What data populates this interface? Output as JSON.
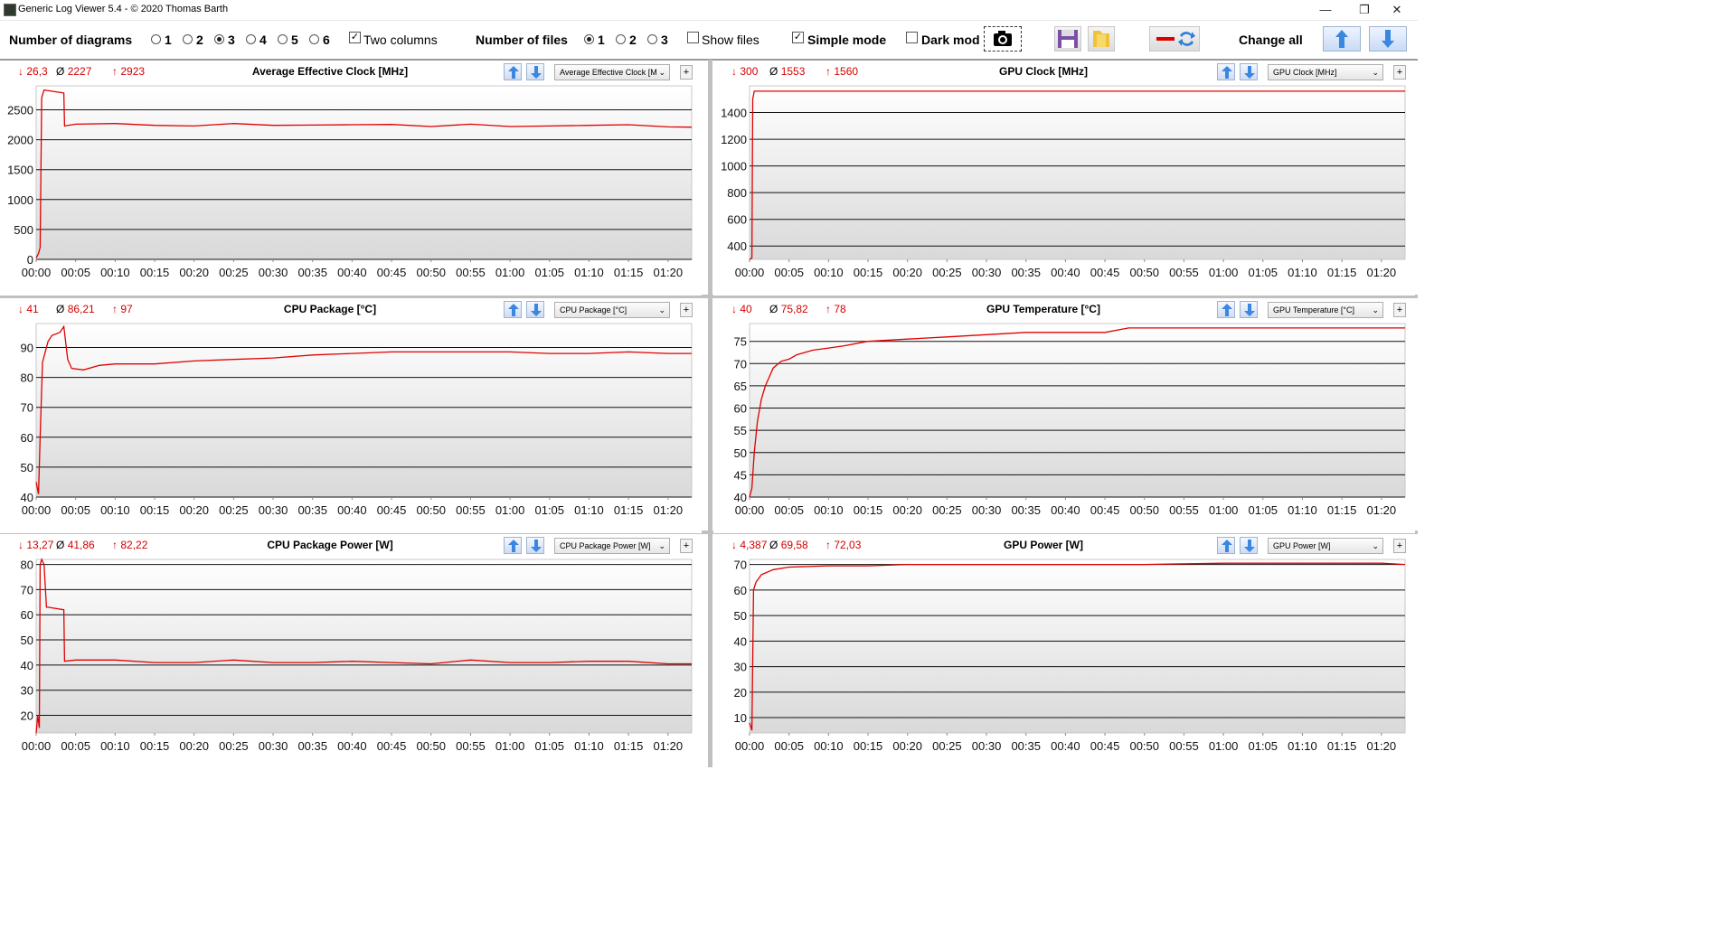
{
  "window": {
    "title": "Generic Log Viewer 5.4 - © 2020 Thomas Barth",
    "minimize": "—",
    "restore": "❐",
    "close": "✕"
  },
  "toolbar": {
    "num_diagrams_label": "Number of diagrams",
    "diagram_options": [
      "1",
      "2",
      "3",
      "4",
      "5",
      "6"
    ],
    "diagram_selected": "3",
    "two_columns_label": "Two columns",
    "two_columns_checked": true,
    "num_files_label": "Number of files",
    "file_options": [
      "1",
      "2",
      "3"
    ],
    "file_selected": "1",
    "show_files_label": "Show files",
    "show_files_checked": false,
    "simple_mode_label": "Simple mode",
    "simple_mode_checked": true,
    "dark_mode_label": "Dark mod",
    "dark_mode_checked": false,
    "change_all_label": "Change all"
  },
  "time_ticks": [
    "00:00",
    "00:05",
    "00:10",
    "00:15",
    "00:20",
    "00:25",
    "00:30",
    "00:35",
    "00:40",
    "00:45",
    "00:50",
    "00:55",
    "01:00",
    "01:05",
    "01:10",
    "01:15",
    "01:20"
  ],
  "panels": [
    {
      "id": "avg-clock",
      "title": "Average Effective Clock [MHz]",
      "min": "26,3",
      "avg": "2227",
      "max": "2923",
      "dropdown": "Average Effective Clock [M",
      "chart_data": {
        "type": "line",
        "title": "Average Effective Clock [MHz]",
        "y_ticks": [
          0,
          500,
          1000,
          1500,
          2000,
          2500
        ],
        "ylim": [
          0,
          2900
        ],
        "x_unit": "minutes",
        "xlim": [
          0,
          83
        ],
        "x": [
          0,
          0.3,
          0.5,
          0.7,
          1,
          3.5,
          3.6,
          5,
          10,
          15,
          20,
          25,
          30,
          35,
          40,
          45,
          50,
          55,
          60,
          65,
          70,
          75,
          80,
          83
        ],
        "y": [
          26,
          100,
          200,
          2700,
          2830,
          2780,
          2230,
          2260,
          2270,
          2240,
          2230,
          2270,
          2240,
          2245,
          2250,
          2255,
          2220,
          2260,
          2220,
          2230,
          2240,
          2250,
          2215,
          2210
        ]
      }
    },
    {
      "id": "gpu-clock",
      "title": "GPU Clock [MHz]",
      "min": "300",
      "avg": "1553",
      "max": "1560",
      "dropdown": "GPU Clock [MHz]",
      "chart_data": {
        "type": "line",
        "title": "GPU Clock [MHz]",
        "y_ticks": [
          400,
          600,
          800,
          1000,
          1200,
          1400
        ],
        "ylim": [
          300,
          1600
        ],
        "x_unit": "minutes",
        "xlim": [
          0,
          83
        ],
        "x": [
          0,
          0.3,
          0.4,
          0.6,
          1,
          83
        ],
        "y": [
          300,
          310,
          1500,
          1560,
          1560,
          1560
        ]
      }
    },
    {
      "id": "cpu-package",
      "title": "CPU Package [°C]",
      "min": "41",
      "avg": "86,21",
      "max": "97",
      "dropdown": "CPU Package [°C]",
      "chart_data": {
        "type": "line",
        "title": "CPU Package [°C]",
        "y_ticks": [
          40,
          50,
          60,
          70,
          80,
          90
        ],
        "ylim": [
          40,
          98
        ],
        "x_unit": "minutes",
        "xlim": [
          0,
          83
        ],
        "x": [
          0,
          0.3,
          0.5,
          0.8,
          1.5,
          2,
          3,
          3.5,
          4,
          4.5,
          6,
          8,
          10,
          15,
          20,
          25,
          30,
          35,
          40,
          45,
          50,
          55,
          60,
          65,
          70,
          75,
          80,
          83
        ],
        "y": [
          45,
          41,
          60,
          85,
          92,
          94,
          95,
          97,
          86,
          83,
          82.5,
          84,
          84.5,
          84.5,
          85.5,
          86,
          86.5,
          87.5,
          88,
          88.5,
          88.5,
          88.5,
          88.5,
          88,
          88,
          88.5,
          88,
          88
        ]
      }
    },
    {
      "id": "gpu-temp",
      "title": "GPU Temperature [°C]",
      "min": "40",
      "avg": "75,82",
      "max": "78",
      "dropdown": "GPU Temperature [°C]",
      "chart_data": {
        "type": "line",
        "title": "GPU Temperature [°C]",
        "y_ticks": [
          40,
          45,
          50,
          55,
          60,
          65,
          70,
          75
        ],
        "ylim": [
          40,
          79
        ],
        "x_unit": "minutes",
        "xlim": [
          0,
          83
        ],
        "x": [
          0,
          0.3,
          0.6,
          1,
          1.5,
          2,
          2.5,
          3,
          4,
          5,
          6,
          8,
          10,
          12,
          15,
          20,
          25,
          30,
          35,
          40,
          45,
          48,
          50,
          60,
          70,
          80,
          83
        ],
        "y": [
          40,
          42,
          50,
          57,
          62,
          65,
          67,
          69,
          70.5,
          71,
          72,
          73,
          73.5,
          74,
          75,
          75.5,
          76,
          76.5,
          77,
          77,
          77,
          78,
          78,
          78,
          78,
          78,
          78
        ]
      }
    },
    {
      "id": "cpu-power",
      "title": "CPU Package Power [W]",
      "min": "13,27",
      "avg": "41,86",
      "max": "82,22",
      "dropdown": "CPU Package Power [W]",
      "chart_data": {
        "type": "line",
        "title": "CPU Package Power [W]",
        "y_ticks": [
          20,
          30,
          40,
          50,
          60,
          70,
          80
        ],
        "ylim": [
          13,
          82
        ],
        "x_unit": "minutes",
        "xlim": [
          0,
          83
        ],
        "x": [
          0,
          0.2,
          0.4,
          0.5,
          0.7,
          1,
          1.3,
          1.5,
          3.5,
          3.6,
          5,
          10,
          15,
          20,
          25,
          30,
          35,
          40,
          45,
          50,
          55,
          60,
          65,
          70,
          75,
          80,
          83
        ],
        "y": [
          13,
          20,
          15,
          80,
          82,
          80,
          63,
          63,
          62,
          41.5,
          42,
          42,
          41,
          41,
          42,
          41,
          41,
          41.5,
          41,
          40.5,
          42,
          41,
          41,
          41.5,
          41.5,
          40.5,
          40.5
        ]
      }
    },
    {
      "id": "gpu-power",
      "title": "GPU Power [W]",
      "min": "4,387",
      "avg": "69,58",
      "max": "72,03",
      "dropdown": "GPU Power [W]",
      "chart_data": {
        "type": "line",
        "title": "GPU Power [W]",
        "y_ticks": [
          10,
          20,
          30,
          40,
          50,
          60,
          70
        ],
        "ylim": [
          4,
          72
        ],
        "x_unit": "minutes",
        "xlim": [
          0,
          83
        ],
        "x": [
          0,
          0.3,
          0.5,
          0.8,
          1.5,
          3,
          5,
          10,
          15,
          20,
          30,
          40,
          50,
          60,
          70,
          80,
          83
        ],
        "y": [
          8,
          5,
          60,
          63,
          66,
          68,
          69,
          69.5,
          69.5,
          70,
          70,
          70,
          70,
          70.5,
          70.5,
          70.5,
          70
        ]
      }
    }
  ]
}
